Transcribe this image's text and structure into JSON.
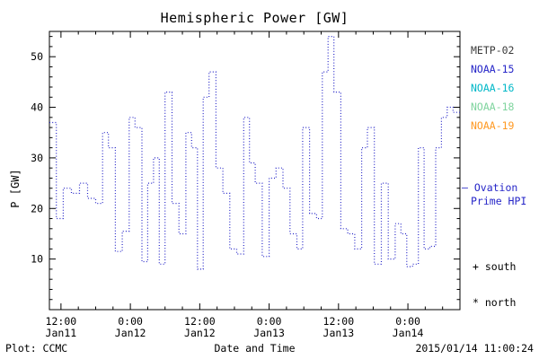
{
  "footer": {
    "left": "Plot: CCMC",
    "center": "Date and Time",
    "right": "2015/01/14 11:00:24"
  },
  "legend": {
    "satellites": [
      {
        "label": "METP-02",
        "color": "#3a3a3a"
      },
      {
        "label": "NOAA-15",
        "color": "#2626c8"
      },
      {
        "label": "NOAA-16",
        "color": "#00b8c8"
      },
      {
        "label": "NOAA-18",
        "color": "#7fd49e"
      },
      {
        "label": "NOAA-19",
        "color": "#ff9922"
      }
    ],
    "ovation": {
      "line1": "— Ovation",
      "line2": "Prime HPI",
      "color": "#2626c8"
    },
    "markers": [
      {
        "symbol": "+",
        "label": "south"
      },
      {
        "symbol": "*",
        "label": "north"
      }
    ]
  },
  "chart_data": {
    "type": "line",
    "style": "dotted-step",
    "title": "Hemispheric Power [GW]",
    "xlabel": "Date and Time",
    "ylabel": "P [GW]",
    "ylim": [
      0,
      55
    ],
    "xlim_hours": [
      0,
      71
    ],
    "y_major_ticks": [
      10,
      20,
      30,
      40,
      50
    ],
    "y_minor_step": 2,
    "x_minor_step_hours": 3,
    "x_major_ticks": [
      {
        "hour": 2,
        "time": "12:00",
        "date": "Jan11"
      },
      {
        "hour": 14,
        "time": "0:00",
        "date": "Jan12"
      },
      {
        "hour": 26,
        "time": "12:00",
        "date": "Jan12"
      },
      {
        "hour": 38,
        "time": "0:00",
        "date": "Jan13"
      },
      {
        "hour": 50,
        "time": "12:00",
        "date": "Jan13"
      },
      {
        "hour": 62,
        "time": "0:00",
        "date": "Jan14"
      }
    ],
    "series": [
      {
        "name": "Ovation Prime HPI",
        "color": "#2626c8",
        "points": [
          [
            0,
            37
          ],
          [
            1.2,
            18
          ],
          [
            2.4,
            24
          ],
          [
            3.8,
            23
          ],
          [
            5.2,
            25
          ],
          [
            6.6,
            22
          ],
          [
            8,
            21
          ],
          [
            9.2,
            35
          ],
          [
            10.2,
            32
          ],
          [
            11.4,
            11.5
          ],
          [
            12.6,
            15.5
          ],
          [
            13.8,
            38
          ],
          [
            14.8,
            36
          ],
          [
            16,
            9.5
          ],
          [
            17,
            25
          ],
          [
            18,
            30
          ],
          [
            19,
            9
          ],
          [
            20,
            43
          ],
          [
            21.2,
            21
          ],
          [
            22.4,
            15
          ],
          [
            23.6,
            35
          ],
          [
            24.6,
            32
          ],
          [
            25.6,
            8
          ],
          [
            26.6,
            42
          ],
          [
            27.6,
            47
          ],
          [
            28.8,
            28
          ],
          [
            30,
            23
          ],
          [
            31.2,
            12
          ],
          [
            32.4,
            11
          ],
          [
            33.6,
            38
          ],
          [
            34.6,
            29
          ],
          [
            35.6,
            25
          ],
          [
            36.8,
            10.5
          ],
          [
            38,
            26
          ],
          [
            39.2,
            28
          ],
          [
            40.4,
            24
          ],
          [
            41.6,
            15
          ],
          [
            42.8,
            12
          ],
          [
            43.8,
            36
          ],
          [
            45,
            19
          ],
          [
            46.2,
            18
          ],
          [
            47.2,
            47
          ],
          [
            48.2,
            54
          ],
          [
            49.2,
            43
          ],
          [
            50.4,
            16
          ],
          [
            51.6,
            15
          ],
          [
            52.8,
            12
          ],
          [
            54,
            32
          ],
          [
            55,
            36
          ],
          [
            56.2,
            9
          ],
          [
            57.4,
            25
          ],
          [
            58.6,
            10
          ],
          [
            59.8,
            17
          ],
          [
            60.8,
            15
          ],
          [
            61.8,
            8.5
          ],
          [
            62.8,
            9
          ],
          [
            63.8,
            32
          ],
          [
            64.8,
            12
          ],
          [
            65.8,
            12.5
          ],
          [
            66.8,
            32
          ],
          [
            67.8,
            38
          ],
          [
            68.8,
            40
          ],
          [
            69.8,
            39
          ],
          [
            71,
            39
          ]
        ]
      }
    ]
  }
}
